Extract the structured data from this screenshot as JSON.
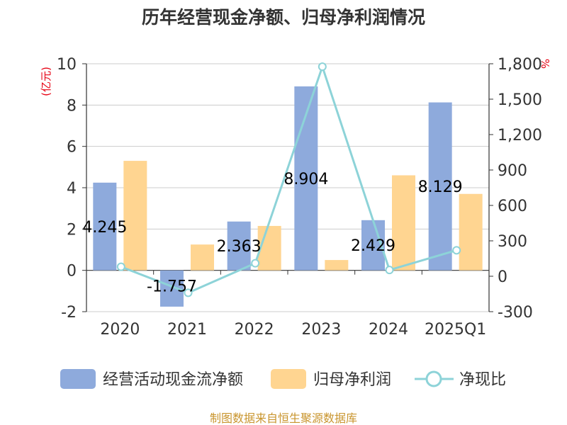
{
  "chart_data": {
    "type": "bar",
    "title": "历年经营现金净额、归母净利润情况",
    "categories": [
      "2020",
      "2021",
      "2022",
      "2023",
      "2024",
      "2025Q1"
    ],
    "left_axis": {
      "unit": "(亿元)",
      "min": -2,
      "max": 10,
      "ticks": [
        "-2",
        "0",
        "2",
        "4",
        "6",
        "8",
        "10"
      ]
    },
    "right_axis": {
      "unit": "%",
      "min": -300,
      "max": 1800,
      "ticks": [
        "-300",
        "0",
        "300",
        "600",
        "900",
        "1,200",
        "1,500",
        "1,800"
      ]
    },
    "series": [
      {
        "name": "经营活动现金流净额",
        "type": "bar",
        "axis": "left",
        "color": "#8eaadc",
        "values": [
          4.245,
          -1.757,
          2.363,
          8.904,
          2.429,
          8.129
        ],
        "labels": [
          "4.245",
          "-1.757",
          "2.363",
          "8.904",
          "2.429",
          "8.129"
        ]
      },
      {
        "name": "归母净利润",
        "type": "bar",
        "axis": "left",
        "color": "#ffd591",
        "values": [
          5.3,
          1.25,
          2.15,
          0.5,
          4.6,
          3.7
        ]
      },
      {
        "name": "净现比",
        "type": "line",
        "axis": "right",
        "color": "#8dd3d8",
        "values": [
          80,
          -140,
          110,
          1775,
          53,
          220
        ]
      }
    ],
    "grid": true,
    "legend_position": "bottom"
  },
  "source_text": "制图数据来自恒生聚源数据库"
}
